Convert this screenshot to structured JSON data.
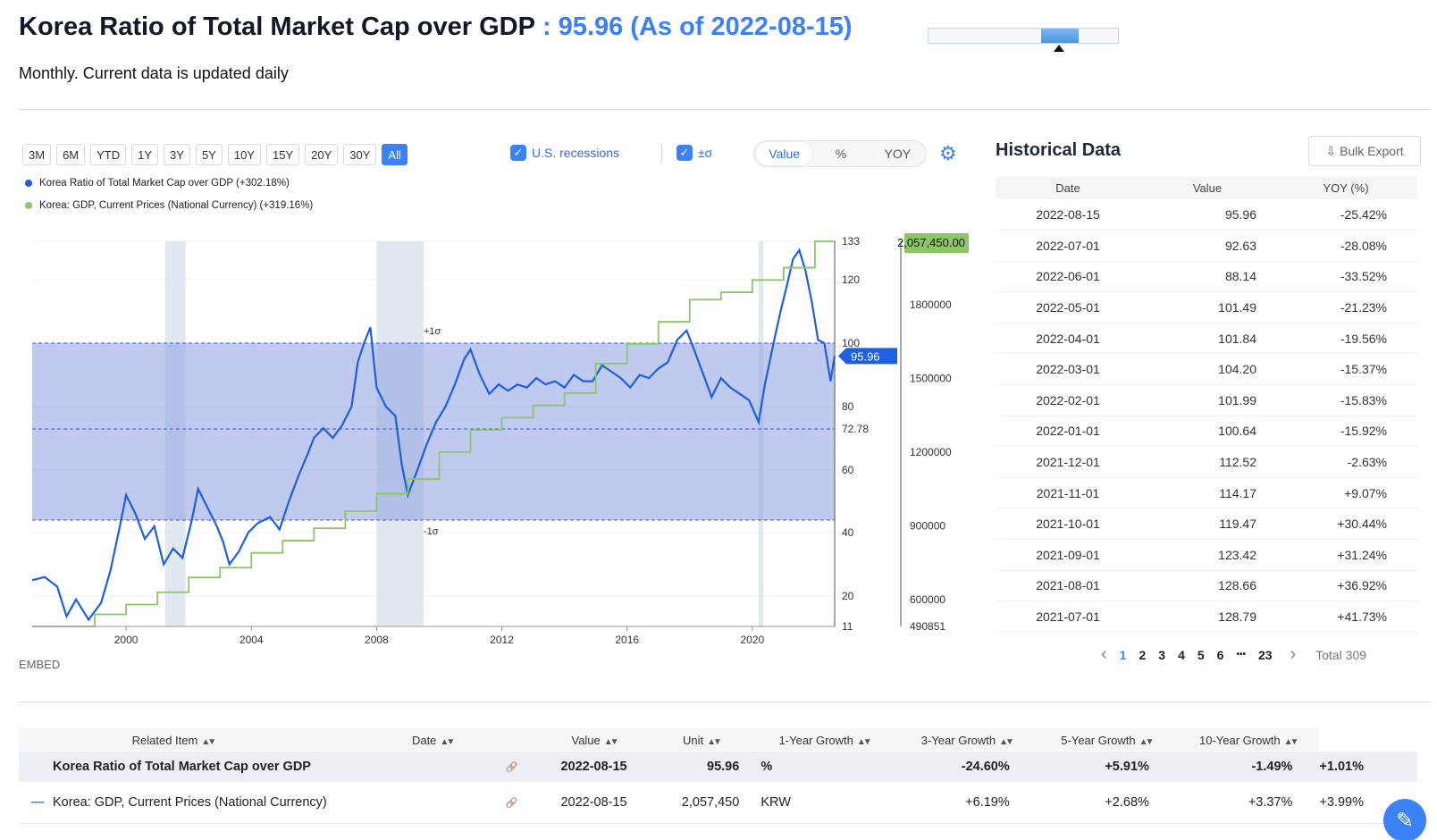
{
  "header": {
    "title": "Korea Ratio of Total Market Cap over GDP",
    "value_text": ": 95.96 (As of 2022-08-15)",
    "subtitle": "Monthly. Current data is updated daily"
  },
  "controls": {
    "ranges": [
      "3M",
      "6M",
      "YTD",
      "1Y",
      "3Y",
      "5Y",
      "10Y",
      "15Y",
      "20Y",
      "30Y",
      "All"
    ],
    "active_range": "All",
    "recessions_label": "U.S. recessions",
    "sigma_label": "±σ",
    "check_mark": "✓",
    "modes": [
      "Value",
      "%",
      "YOY"
    ],
    "active_mode": "Value",
    "gear_icon": "⚙"
  },
  "legend": [
    {
      "label": "Korea Ratio of Total Market Cap over GDP (+302.18%)",
      "color": "#1d5fe0"
    },
    {
      "label": "Korea: GDP, Current Prices (National Currency) (+319.16%)",
      "color": "#8cc665"
    }
  ],
  "chart_data": {
    "type": "line",
    "x_ticks": [
      "2000",
      "2004",
      "2008",
      "2012",
      "2016",
      "2020"
    ],
    "y_left_ticks": [
      "133",
      "120",
      "100",
      "80",
      "72.78",
      "60",
      "40",
      "20",
      "11"
    ],
    "y_right_ticks": [
      "1800000",
      "1500000",
      "1200000",
      "900000",
      "600000",
      "490851"
    ],
    "y_left_range": [
      11,
      133
    ],
    "y_right_range": [
      490851,
      2057450
    ],
    "band": {
      "upper_label": "+1σ",
      "lower_label": "-1σ",
      "mean": 72.78,
      "upper": 100,
      "lower": 44
    },
    "current_value_label": "95.96",
    "right_max_label": "2,057,450.00",
    "recessions": [
      [
        2001.25,
        2001.9
      ],
      [
        2008.0,
        2009.5
      ],
      [
        2020.2,
        2020.35
      ]
    ],
    "series": [
      {
        "name": "Korea Ratio of Total Market Cap over GDP",
        "color": "#1d5fe0",
        "points": [
          [
            1997.0,
            25
          ],
          [
            1997.4,
            26
          ],
          [
            1997.8,
            23
          ],
          [
            1998.1,
            14
          ],
          [
            1998.4,
            19
          ],
          [
            1998.8,
            13
          ],
          [
            1999.2,
            18
          ],
          [
            1999.5,
            28
          ],
          [
            1999.8,
            42
          ],
          [
            2000.0,
            52
          ],
          [
            2000.3,
            46
          ],
          [
            2000.6,
            38
          ],
          [
            2000.9,
            42
          ],
          [
            2001.2,
            30
          ],
          [
            2001.5,
            35
          ],
          [
            2001.8,
            32
          ],
          [
            2002.1,
            44
          ],
          [
            2002.3,
            54
          ],
          [
            2002.6,
            48
          ],
          [
            2002.9,
            42
          ],
          [
            2003.1,
            37
          ],
          [
            2003.3,
            30
          ],
          [
            2003.6,
            34
          ],
          [
            2003.9,
            40
          ],
          [
            2004.2,
            43
          ],
          [
            2004.6,
            45
          ],
          [
            2004.9,
            41
          ],
          [
            2005.2,
            50
          ],
          [
            2005.5,
            58
          ],
          [
            2005.8,
            65
          ],
          [
            2006.0,
            70
          ],
          [
            2006.3,
            73
          ],
          [
            2006.6,
            70
          ],
          [
            2006.9,
            74
          ],
          [
            2007.2,
            80
          ],
          [
            2007.4,
            94
          ],
          [
            2007.6,
            100
          ],
          [
            2007.8,
            105
          ],
          [
            2008.0,
            86
          ],
          [
            2008.3,
            80
          ],
          [
            2008.6,
            77
          ],
          [
            2008.8,
            62
          ],
          [
            2009.0,
            52
          ],
          [
            2009.3,
            60
          ],
          [
            2009.6,
            68
          ],
          [
            2009.9,
            75
          ],
          [
            2010.2,
            80
          ],
          [
            2010.5,
            87
          ],
          [
            2010.8,
            95
          ],
          [
            2011.0,
            98
          ],
          [
            2011.3,
            90
          ],
          [
            2011.6,
            84
          ],
          [
            2011.9,
            87
          ],
          [
            2012.2,
            85
          ],
          [
            2012.5,
            87
          ],
          [
            2012.8,
            86
          ],
          [
            2013.1,
            89
          ],
          [
            2013.4,
            87
          ],
          [
            2013.7,
            88
          ],
          [
            2014.0,
            86
          ],
          [
            2014.3,
            90
          ],
          [
            2014.6,
            88
          ],
          [
            2014.9,
            88
          ],
          [
            2015.2,
            93
          ],
          [
            2015.5,
            91
          ],
          [
            2015.8,
            89
          ],
          [
            2016.1,
            86
          ],
          [
            2016.4,
            90
          ],
          [
            2016.7,
            89
          ],
          [
            2017.0,
            92
          ],
          [
            2017.3,
            94
          ],
          [
            2017.6,
            101
          ],
          [
            2017.9,
            104
          ],
          [
            2018.1,
            99
          ],
          [
            2018.4,
            91
          ],
          [
            2018.7,
            83
          ],
          [
            2019.0,
            89
          ],
          [
            2019.3,
            86
          ],
          [
            2019.6,
            84
          ],
          [
            2019.9,
            82
          ],
          [
            2020.2,
            75
          ],
          [
            2020.4,
            87
          ],
          [
            2020.7,
            101
          ],
          [
            2020.9,
            110
          ],
          [
            2021.1,
            118
          ],
          [
            2021.3,
            127
          ],
          [
            2021.5,
            130
          ],
          [
            2021.7,
            123
          ],
          [
            2021.9,
            113
          ],
          [
            2022.1,
            101
          ],
          [
            2022.3,
            100
          ],
          [
            2022.5,
            88
          ],
          [
            2022.63,
            95.96
          ]
        ]
      },
      {
        "name": "Korea: GDP, Current Prices (National Currency)",
        "color": "#8cc665",
        "points": [
          [
            1997.0,
            490851
          ],
          [
            1998.0,
            490851
          ],
          [
            1999.0,
            540000
          ],
          [
            2000.0,
            580000
          ],
          [
            2001.0,
            630000
          ],
          [
            2002.0,
            690000
          ],
          [
            2003.0,
            730000
          ],
          [
            2004.0,
            790000
          ],
          [
            2005.0,
            840000
          ],
          [
            2006.0,
            890000
          ],
          [
            2007.0,
            960000
          ],
          [
            2008.0,
            1030000
          ],
          [
            2009.0,
            1090000
          ],
          [
            2010.0,
            1200000
          ],
          [
            2011.0,
            1290000
          ],
          [
            2012.0,
            1340000
          ],
          [
            2013.0,
            1390000
          ],
          [
            2014.0,
            1440000
          ],
          [
            2015.0,
            1560000
          ],
          [
            2016.0,
            1640000
          ],
          [
            2017.0,
            1730000
          ],
          [
            2018.0,
            1820000
          ],
          [
            2019.0,
            1850000
          ],
          [
            2020.0,
            1900000
          ],
          [
            2021.0,
            1950000
          ],
          [
            2022.0,
            2057450
          ],
          [
            2022.63,
            2057450
          ]
        ]
      }
    ]
  },
  "embed_label": "EMBED",
  "historical": {
    "title": "Historical Data",
    "export_icon": "⇩",
    "export_label": "Bulk Export",
    "columns": [
      "Date",
      "Value",
      "YOY (%)"
    ],
    "rows": [
      {
        "date": "2022-08-15",
        "value": "95.96",
        "yoy": "-25.42%"
      },
      {
        "date": "2022-07-01",
        "value": "92.63",
        "yoy": "-28.08%"
      },
      {
        "date": "2022-06-01",
        "value": "88.14",
        "yoy": "-33.52%"
      },
      {
        "date": "2022-05-01",
        "value": "101.49",
        "yoy": "-21.23%"
      },
      {
        "date": "2022-04-01",
        "value": "101.84",
        "yoy": "-19.56%"
      },
      {
        "date": "2022-03-01",
        "value": "104.20",
        "yoy": "-15.37%"
      },
      {
        "date": "2022-02-01",
        "value": "101.99",
        "yoy": "-15.83%"
      },
      {
        "date": "2022-01-01",
        "value": "100.64",
        "yoy": "-15.92%"
      },
      {
        "date": "2021-12-01",
        "value": "112.52",
        "yoy": "-2.63%"
      },
      {
        "date": "2021-11-01",
        "value": "114.17",
        "yoy": "+9.07%"
      },
      {
        "date": "2021-10-01",
        "value": "119.47",
        "yoy": "+30.44%"
      },
      {
        "date": "2021-09-01",
        "value": "123.42",
        "yoy": "+31.24%"
      },
      {
        "date": "2021-08-01",
        "value": "128.66",
        "yoy": "+36.92%"
      },
      {
        "date": "2021-07-01",
        "value": "128.79",
        "yoy": "+41.73%"
      }
    ],
    "pager": {
      "prev": "‹",
      "pages": [
        "1",
        "2",
        "3",
        "4",
        "5",
        "6"
      ],
      "ellipsis": "•••",
      "last": "23",
      "next": "›",
      "current": "1",
      "total": "Total 309"
    }
  },
  "related": {
    "columns": [
      "Related Item",
      "Date",
      "Value",
      "Unit",
      "1-Year Growth",
      "3-Year Growth",
      "5-Year Growth",
      "10-Year Growth"
    ],
    "sort_icon": "▲▼",
    "link_icon": "🔗",
    "rows": [
      {
        "marker": "",
        "item": "Korea Ratio of Total Market Cap over GDP",
        "date": "2022-08-15",
        "value": "95.96",
        "unit": "%",
        "g1": "-24.60%",
        "g3": "+5.91%",
        "g5": "-1.49%",
        "g10": "+1.01%"
      },
      {
        "marker": "—",
        "item": "Korea: GDP, Current Prices (National Currency)",
        "date": "2022-08-15",
        "value": "2,057,450",
        "unit": "KRW",
        "g1": "+6.19%",
        "g3": "+2.68%",
        "g5": "+3.37%",
        "g10": "+3.99%"
      }
    ]
  },
  "fab_icon": "✎"
}
